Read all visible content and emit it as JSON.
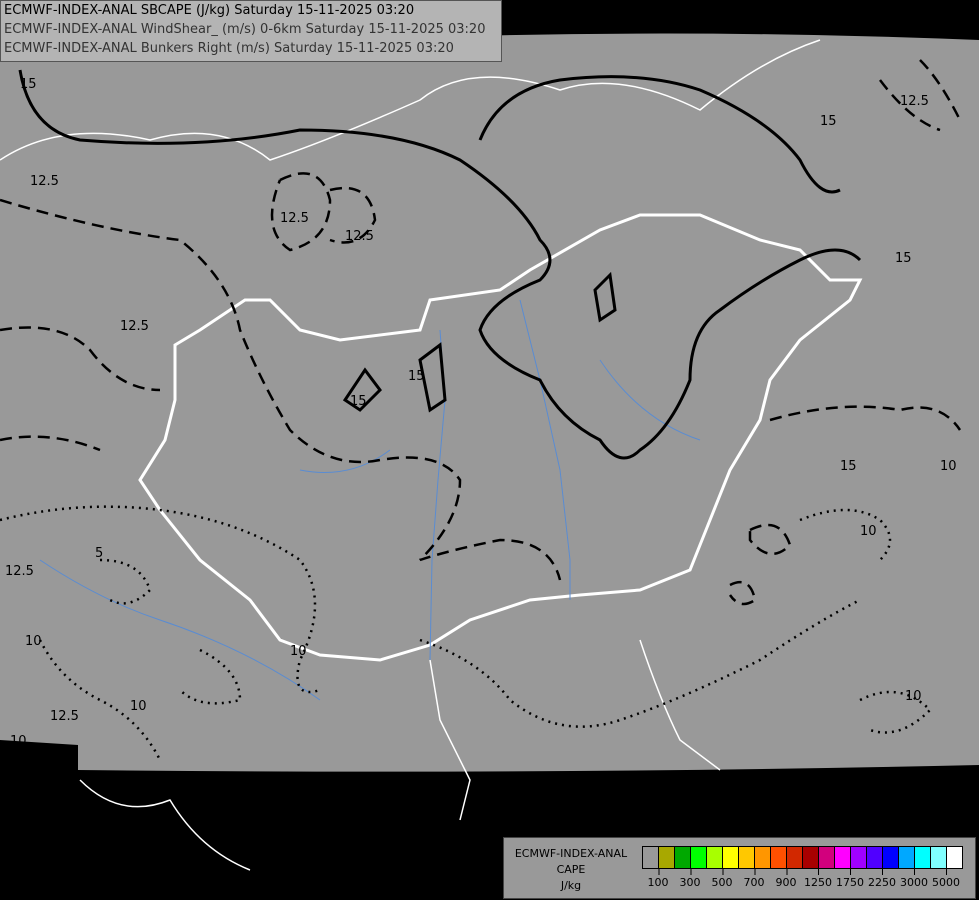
{
  "header": {
    "line1": "ECMWF-INDEX-ANAL SBCAPE (J/kg) Saturday 15-11-2025 03:20",
    "line2": "ECMWF-INDEX-ANAL WindShear_ (m/s) 0-6km Saturday 15-11-2025 03:20",
    "line3": "ECMWF-INDEX-ANAL Bunkers Right (m/s) Saturday 15-11-2025 03:20"
  },
  "map": {
    "domain_color": "#999999",
    "outside_color": "#000000",
    "border_color": "#ffffff",
    "river_color": "#5a8cd2",
    "contour_labels": [
      {
        "text": "15"
      },
      {
        "text": "12.5"
      },
      {
        "text": "12.5"
      },
      {
        "text": "12.5"
      },
      {
        "text": "12.5"
      },
      {
        "text": "15"
      },
      {
        "text": "15"
      },
      {
        "text": "15"
      },
      {
        "text": "12.5"
      },
      {
        "text": "15"
      },
      {
        "text": "10"
      },
      {
        "text": "10"
      },
      {
        "text": "5"
      },
      {
        "text": "10"
      },
      {
        "text": "10"
      },
      {
        "text": "10"
      },
      {
        "text": "12.5"
      },
      {
        "text": "10"
      },
      {
        "text": "12.5"
      },
      {
        "text": "10"
      },
      {
        "text": "15"
      }
    ]
  },
  "legend": {
    "title1": "ECMWF-INDEX-ANAL",
    "title2": "CAPE",
    "unit": "J/kg",
    "colors": [
      "#999999",
      "#a8a800",
      "#00a800",
      "#00ff00",
      "#a8ff00",
      "#ffff00",
      "#ffc800",
      "#ff9600",
      "#ff5000",
      "#d22800",
      "#a80000",
      "#d2007d",
      "#ff00ff",
      "#a000ff",
      "#5000ff",
      "#0000ff",
      "#00a8ff",
      "#00ffff",
      "#80ffff",
      "#ffffff"
    ],
    "ticks": [
      "100",
      "300",
      "500",
      "700",
      "900",
      "1250",
      "1750",
      "2250",
      "3000",
      "5000"
    ]
  }
}
